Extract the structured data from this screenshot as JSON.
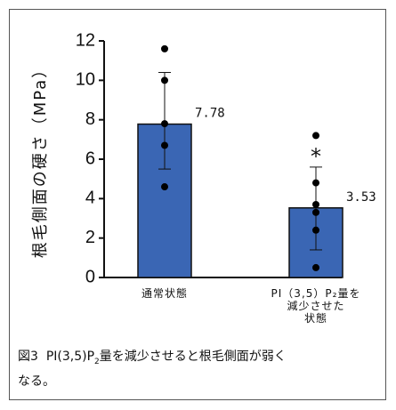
{
  "chart_data": {
    "type": "bar",
    "ylabel": "根毛側面の硬さ（MPa）",
    "ylim": [
      0,
      12
    ],
    "yticks": [
      "0",
      "2",
      "4",
      "6",
      "8",
      "10",
      "12"
    ],
    "categories": [
      {
        "lines": [
          "通常状態"
        ]
      },
      {
        "lines": [
          "PI（3,5）P₂量を",
          "減少させた",
          "状態"
        ]
      }
    ],
    "values": [
      7.78,
      3.53
    ],
    "value_labels": [
      "7.78",
      "3.53"
    ],
    "error_bars": [
      {
        "low": 5.5,
        "high": 10.4
      },
      {
        "low": 1.4,
        "high": 5.6
      }
    ],
    "points": [
      [
        11.6,
        10.0,
        7.8,
        6.7,
        4.6
      ],
      [
        7.2,
        4.8,
        3.7,
        3.3,
        2.4,
        0.5
      ]
    ],
    "annotations": [
      {
        "category_index": 1,
        "text": "*"
      }
    ],
    "bar_color": "#3a66b4",
    "grid": false
  },
  "caption": {
    "prefix": "図3",
    "text_before": "PI(3,5)P",
    "sub": "2",
    "text_after": "量を減少させると根毛側面が弱く",
    "line2": "なる。"
  }
}
